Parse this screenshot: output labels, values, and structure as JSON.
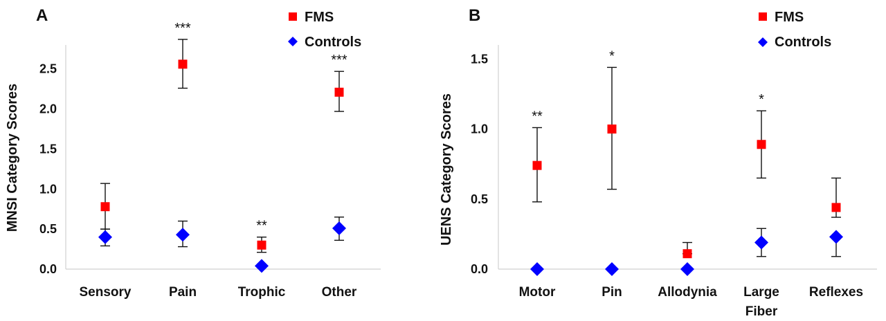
{
  "chart_data": [
    {
      "type": "scatter",
      "panel_label": "A",
      "ylabel": "MNSI Category Scores",
      "ylim": [
        0,
        2.8
      ],
      "yticks": [
        "0.0",
        "0.5",
        "1.0",
        "1.5",
        "2.0",
        "2.5"
      ],
      "categories": [
        "Sensory",
        "Pain",
        "Trophic",
        "Other"
      ],
      "legend_position": "top-right",
      "series": [
        {
          "name": "FMS",
          "color": "#ff0000",
          "marker": "square",
          "values": [
            0.78,
            2.56,
            0.3,
            2.21
          ],
          "err_high": [
            1.07,
            2.87,
            0.4,
            2.47
          ],
          "err_low": [
            0.5,
            2.26,
            0.21,
            1.97
          ]
        },
        {
          "name": "Controls",
          "color": "#0000ff",
          "marker": "diamond",
          "values": [
            0.4,
            0.43,
            0.04,
            0.51
          ],
          "err_high": [
            0.5,
            0.6,
            0.04,
            0.65
          ],
          "err_low": [
            0.29,
            0.28,
            0.04,
            0.36
          ]
        }
      ],
      "annotations": [
        "",
        "***",
        "**",
        "***"
      ]
    },
    {
      "type": "scatter",
      "panel_label": "B",
      "ylabel": "UENS Category Scores",
      "ylim": [
        0,
        1.6
      ],
      "yticks": [
        "0.0",
        "0.5",
        "1.0",
        "1.5"
      ],
      "categories": [
        "Motor",
        "Pin",
        "Allodynia",
        "Large Fiber",
        "Reflexes"
      ],
      "legend_position": "top-right",
      "series": [
        {
          "name": "FMS",
          "color": "#ff0000",
          "marker": "square",
          "values": [
            0.74,
            1.0,
            0.11,
            0.89,
            0.44
          ],
          "err_high": [
            1.01,
            1.44,
            0.19,
            1.13,
            0.65
          ],
          "err_low": [
            0.48,
            0.57,
            0.11,
            0.65,
            0.37
          ]
        },
        {
          "name": "Controls",
          "color": "#0000ff",
          "marker": "diamond",
          "values": [
            0.0,
            0.0,
            0.0,
            0.19,
            0.23
          ],
          "err_high": [
            0.0,
            0.0,
            0.0,
            0.29,
            0.23
          ],
          "err_low": [
            0.0,
            0.0,
            0.0,
            0.09,
            0.09
          ]
        }
      ],
      "annotations": [
        "**",
        "*",
        "",
        "*",
        ""
      ]
    }
  ]
}
